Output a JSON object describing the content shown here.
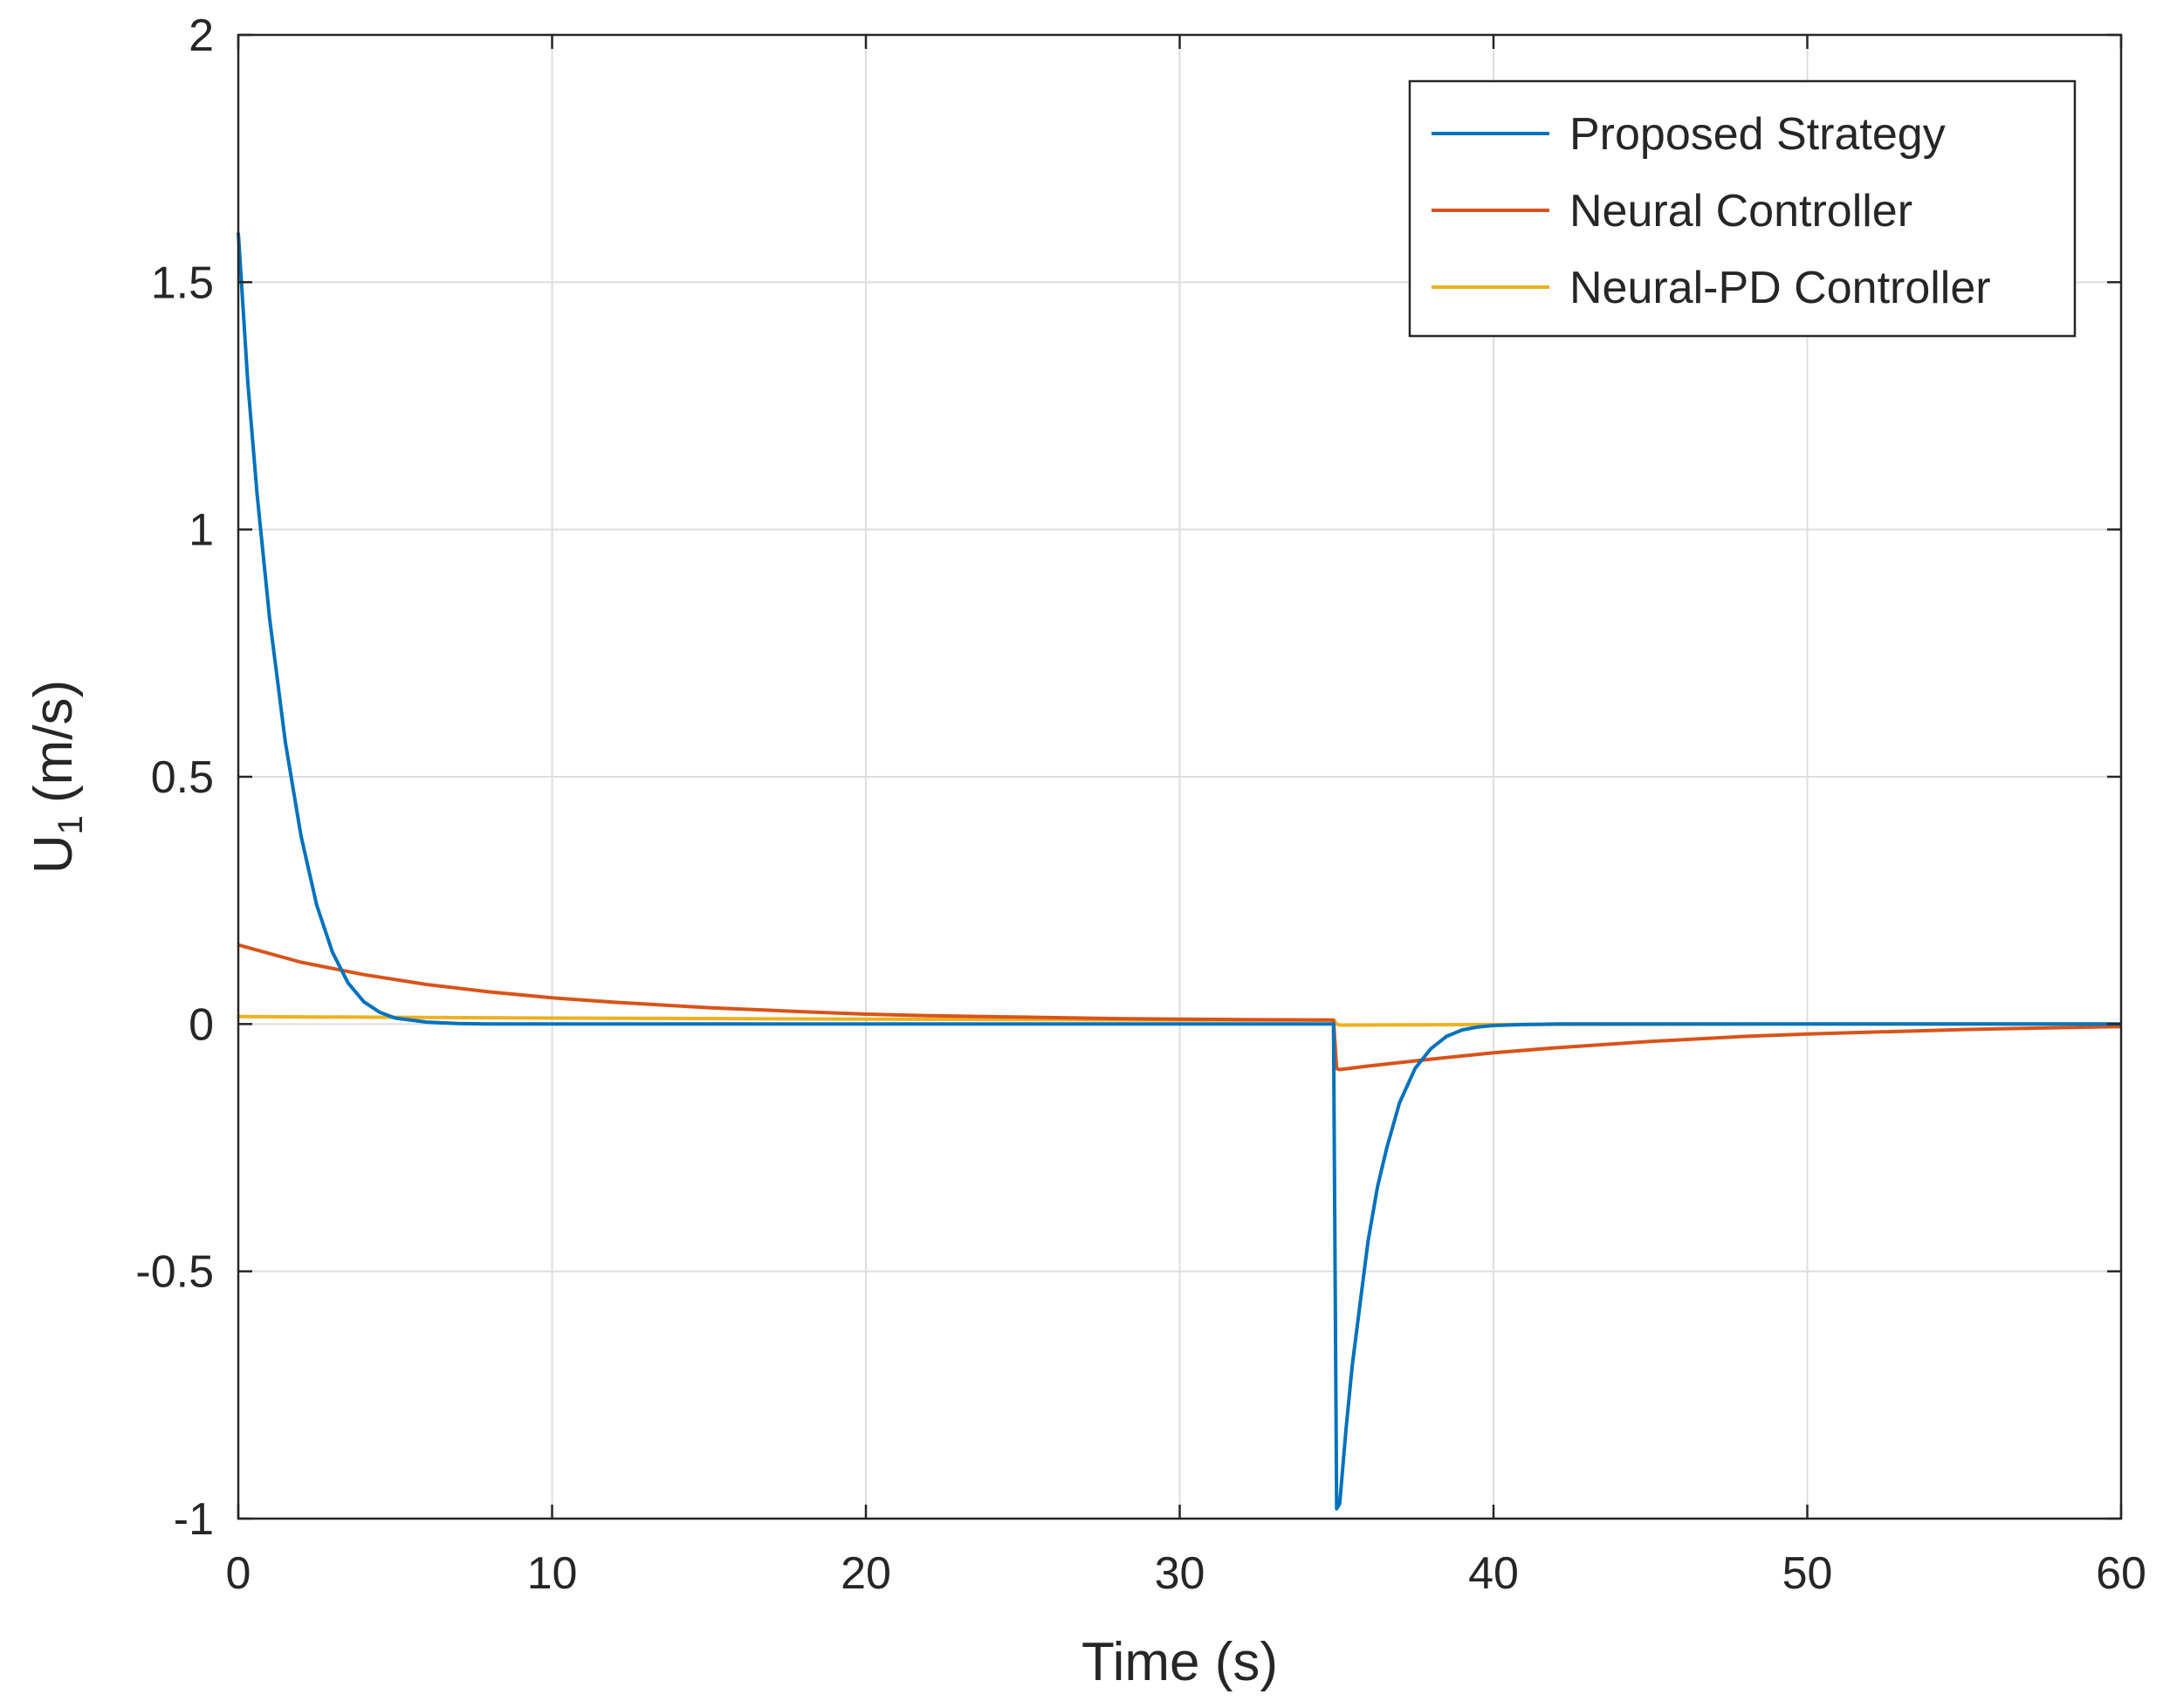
{
  "chart_data": {
    "type": "line",
    "title": "",
    "xlabel": "Time (s)",
    "ylabel_main": "U",
    "ylabel_sub": "1",
    "ylabel_unit": "(m/s)",
    "xlim": [
      0,
      60
    ],
    "ylim": [
      -1,
      2
    ],
    "xticks": [
      0,
      10,
      20,
      30,
      40,
      50,
      60
    ],
    "yticks": [
      -1,
      -0.5,
      0,
      0.5,
      1,
      1.5,
      2
    ],
    "xtick_labels": [
      "0",
      "10",
      "20",
      "30",
      "40",
      "50",
      "60"
    ],
    "ytick_labels": [
      "-1",
      "-0.5",
      "0",
      "0.5",
      "1",
      "1.5",
      "2"
    ],
    "grid": true,
    "legend_position": "top-right",
    "series": [
      {
        "name": "Proposed Strategy",
        "color": "#0072BD",
        "x": [
          0,
          0.3,
          0.6,
          1.0,
          1.5,
          2.0,
          2.5,
          3.0,
          3.5,
          4.0,
          4.5,
          5.0,
          6.0,
          7.0,
          8.0,
          10,
          15,
          20,
          25,
          30,
          34.9,
          35.0,
          35.1,
          35.3,
          35.5,
          35.8,
          36.0,
          36.3,
          36.6,
          37.0,
          37.5,
          38.0,
          38.5,
          39.0,
          39.5,
          40.0,
          41.0,
          42.0,
          45.0,
          50.0,
          55.0,
          60.0
        ],
        "y": [
          1.6,
          1.3,
          1.07,
          0.82,
          0.57,
          0.38,
          0.24,
          0.145,
          0.083,
          0.045,
          0.024,
          0.012,
          0.004,
          0.001,
          0.0,
          0.0,
          0.0,
          0.0,
          0.0,
          0.0,
          0.0,
          -0.98,
          -0.97,
          -0.82,
          -0.69,
          -0.54,
          -0.44,
          -0.33,
          -0.25,
          -0.16,
          -0.09,
          -0.05,
          -0.025,
          -0.012,
          -0.006,
          -0.003,
          -0.001,
          0.0,
          0.0,
          0.0,
          0.0,
          0.0
        ]
      },
      {
        "name": "Neural Controller",
        "color": "#D95319",
        "x": [
          0,
          2,
          4,
          6,
          8,
          10,
          12,
          15,
          18,
          20,
          22,
          25,
          28,
          30,
          32,
          34.9,
          35.0,
          35.1,
          36,
          37,
          38,
          40,
          42,
          45,
          48,
          50,
          55,
          60
        ],
        "y": [
          0.16,
          0.125,
          0.1,
          0.08,
          0.065,
          0.053,
          0.044,
          0.033,
          0.025,
          0.02,
          0.017,
          0.014,
          0.011,
          0.01,
          0.009,
          0.008,
          -0.09,
          -0.092,
          -0.085,
          -0.078,
          -0.071,
          -0.058,
          -0.048,
          -0.035,
          -0.025,
          -0.02,
          -0.011,
          -0.005
        ]
      },
      {
        "name": "Neural-PD Controller",
        "color": "#EDB120",
        "x": [
          0,
          10,
          20,
          30,
          34.9,
          35.0,
          35.1,
          40,
          50,
          60
        ],
        "y": [
          0.015,
          0.012,
          0.01,
          0.008,
          0.008,
          0.0,
          -0.002,
          -0.001,
          0.0,
          0.0
        ]
      }
    ]
  }
}
